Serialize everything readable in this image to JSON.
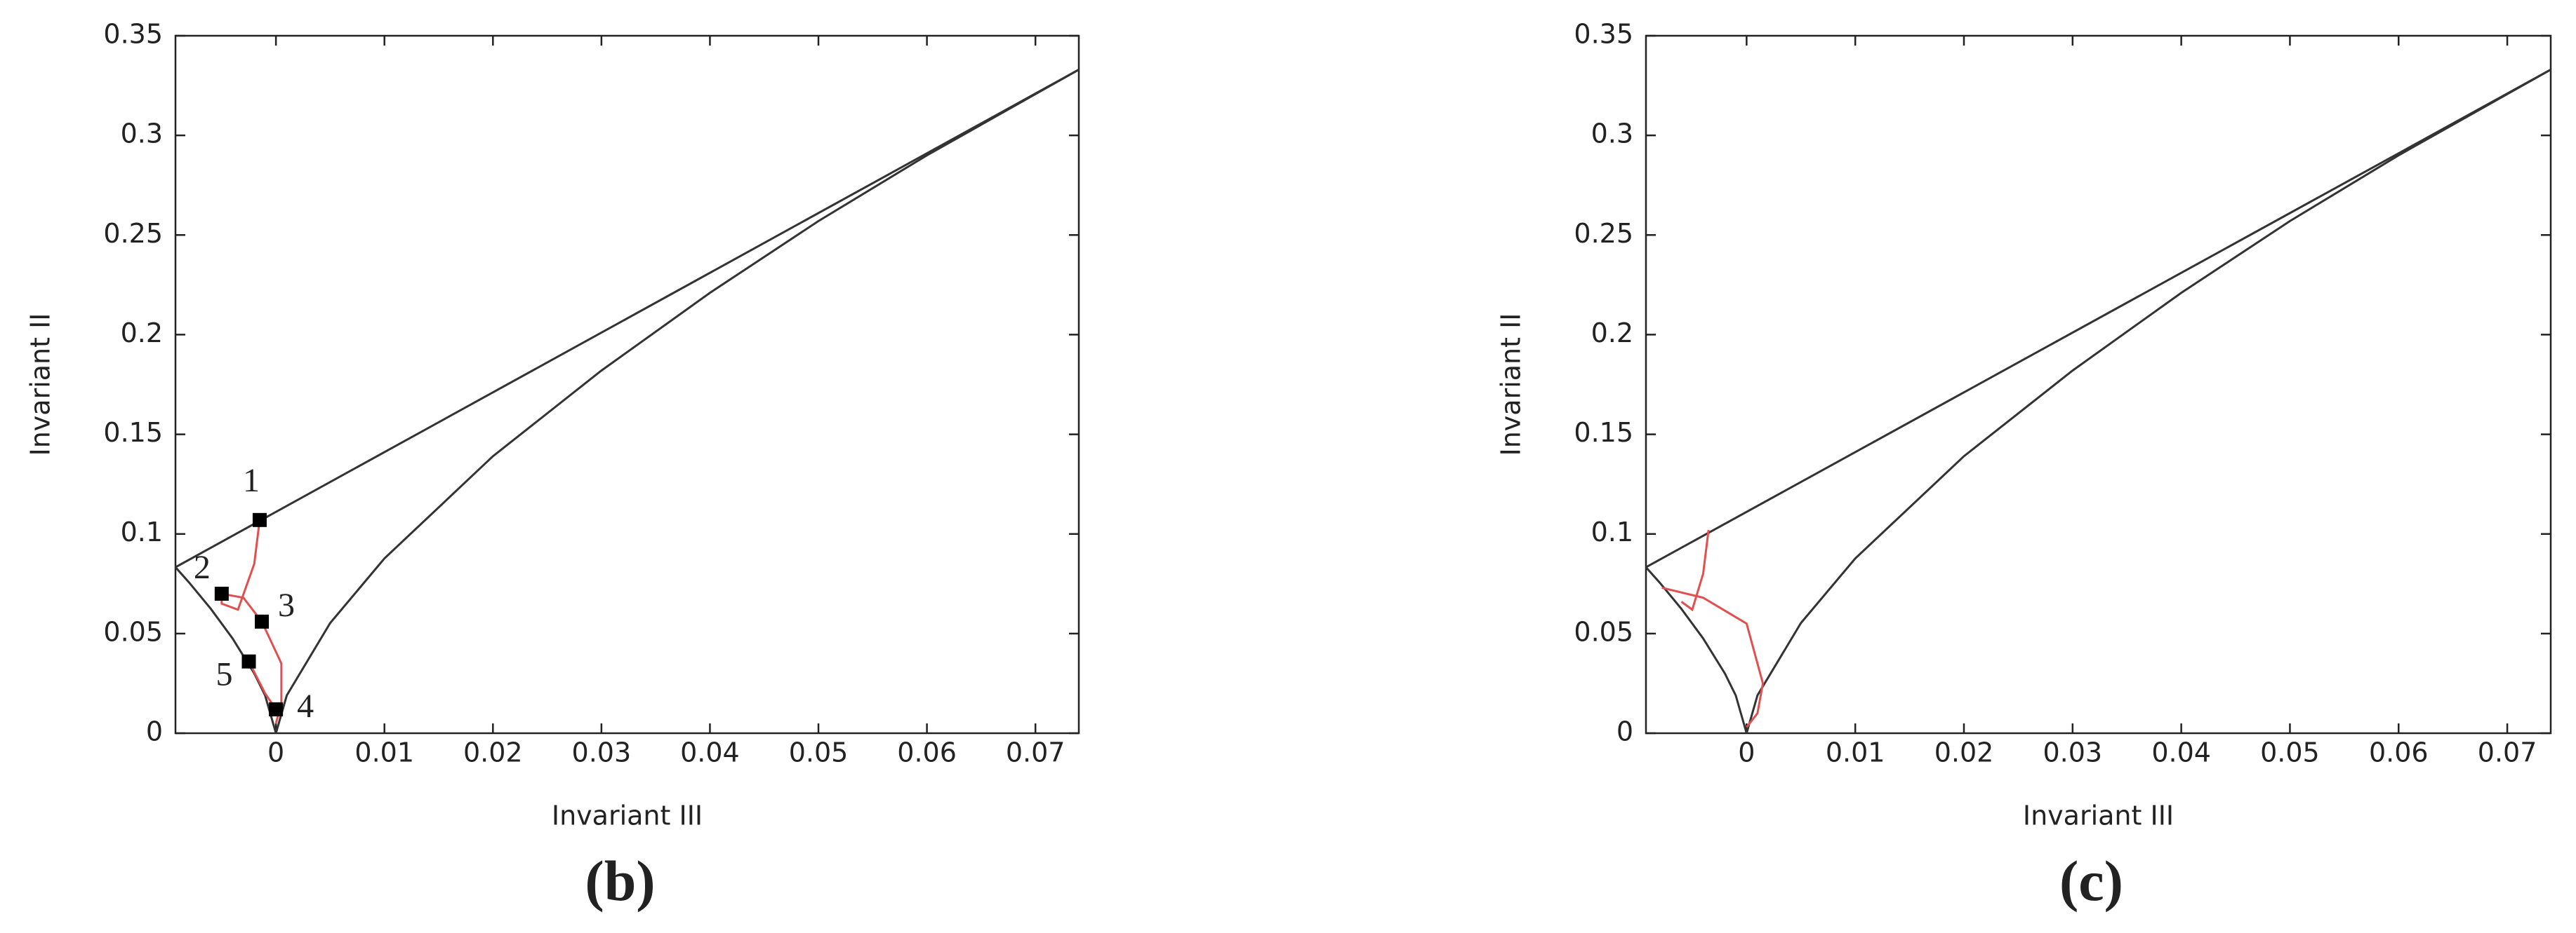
{
  "chart_data": [
    {
      "type": "line",
      "caption": "(b)",
      "xlabel": "Invariant III",
      "ylabel": "Invariant II",
      "xlim": [
        -0.00926,
        0.074
      ],
      "ylim": [
        0,
        0.35
      ],
      "xticks": [
        0,
        0.01,
        0.02,
        0.03,
        0.04,
        0.05,
        0.06,
        0.07
      ],
      "yticks": [
        0,
        0.05,
        0.1,
        0.15,
        0.2,
        0.25,
        0.3,
        0.35
      ],
      "series": [
        {
          "color": "#333333",
          "x": [
            -0.00926,
            0.074
          ],
          "values": [
            0.0833,
            0.333
          ]
        },
        {
          "color": "#333333",
          "x": [
            -0.00926,
            -0.008,
            -0.006,
            -0.004,
            -0.002,
            -0.001,
            0
          ],
          "values": [
            0.0833,
            0.0756,
            0.0624,
            0.0476,
            0.03,
            0.019,
            0
          ]
        },
        {
          "color": "#333333",
          "x": [
            0,
            0.001,
            0.005,
            0.01,
            0.02,
            0.03,
            0.04,
            0.05,
            0.06,
            0.074
          ],
          "values": [
            0,
            0.019,
            0.0553,
            0.0877,
            0.139,
            0.182,
            0.221,
            0.257,
            0.29,
            0.333
          ]
        },
        {
          "color": "#e05050",
          "x": [
            -0.0015,
            -0.002,
            -0.0035,
            -0.005,
            -0.005,
            -0.003,
            -0.0013,
            0.0005,
            0.0005,
            0,
            null,
            -0.0025,
            -0.001,
            0
          ],
          "values": [
            0.107,
            0.085,
            0.062,
            0.065,
            0.07,
            0.068,
            0.056,
            0.035,
            0.015,
            0.005,
            null,
            0.036,
            0.02,
            0.012
          ]
        }
      ],
      "markers": {
        "labels": [
          "1",
          "2",
          "3",
          "5",
          "4"
        ],
        "x": [
          -0.0015,
          -0.005,
          -0.0013,
          -0.0025,
          0
        ],
        "values": [
          0.107,
          0.07,
          0.056,
          0.036,
          0.012
        ]
      }
    },
    {
      "type": "line",
      "caption": "(c)",
      "xlabel": "Invariant III",
      "ylabel": "Invariant II",
      "xlim": [
        -0.00926,
        0.074
      ],
      "ylim": [
        0,
        0.35
      ],
      "xticks": [
        0,
        0.01,
        0.02,
        0.03,
        0.04,
        0.05,
        0.06,
        0.07
      ],
      "yticks": [
        0,
        0.05,
        0.1,
        0.15,
        0.2,
        0.25,
        0.3,
        0.35
      ],
      "series": [
        {
          "color": "#333333",
          "x": [
            -0.00926,
            0.074
          ],
          "values": [
            0.0833,
            0.333
          ]
        },
        {
          "color": "#333333",
          "x": [
            -0.00926,
            -0.008,
            -0.006,
            -0.004,
            -0.002,
            -0.001,
            0
          ],
          "values": [
            0.0833,
            0.0756,
            0.0624,
            0.0476,
            0.03,
            0.019,
            0
          ]
        },
        {
          "color": "#333333",
          "x": [
            0,
            0.001,
            0.005,
            0.01,
            0.02,
            0.03,
            0.04,
            0.05,
            0.06,
            0.074
          ],
          "values": [
            0,
            0.019,
            0.0553,
            0.0877,
            0.139,
            0.182,
            0.221,
            0.257,
            0.29,
            0.333
          ]
        },
        {
          "color": "#e05050",
          "x": [
            -0.0035,
            -0.004,
            -0.005,
            -0.006,
            null,
            -0.0078,
            -0.004,
            0,
            0.0015,
            0.001,
            0
          ],
          "values": [
            0.102,
            0.08,
            0.062,
            0.066,
            null,
            0.073,
            0.068,
            0.055,
            0.025,
            0.01,
            0.003
          ]
        }
      ]
    }
  ]
}
